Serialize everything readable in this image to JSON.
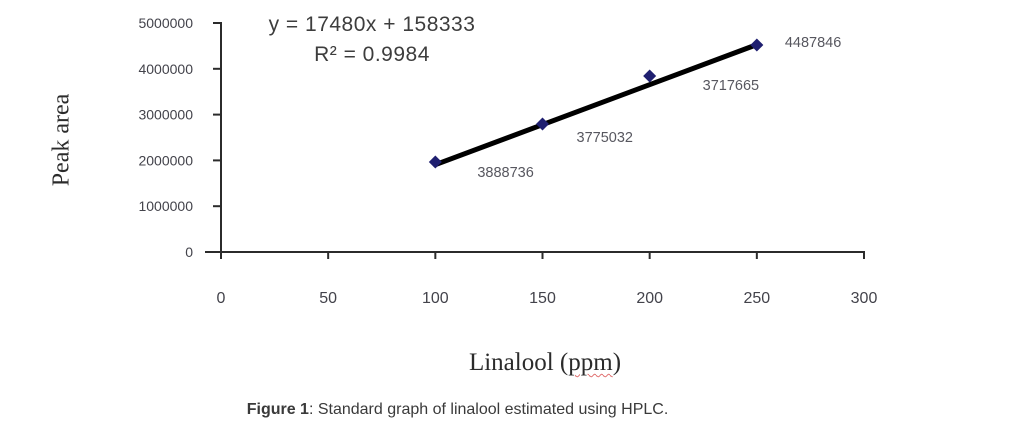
{
  "chart_data": {
    "type": "scatter",
    "title": "",
    "equation": "y = 17480x + 158333",
    "r_squared": "R² = 0.9984",
    "xlabel": "Linalool (ppm)",
    "xlabel_parts": {
      "pre": "Linalool (",
      "word": "ppm",
      "post": ")"
    },
    "ylabel": "Peak area",
    "xlim": [
      0,
      300
    ],
    "ylim": [
      0,
      5000000
    ],
    "x_ticks": [
      0,
      50,
      100,
      150,
      200,
      250,
      300
    ],
    "y_ticks": [
      0,
      1000000,
      2000000,
      3000000,
      4000000,
      5000000
    ],
    "grid": false,
    "legend": "none",
    "points": [
      {
        "x": 100,
        "y": 1965000,
        "label": "3888736"
      },
      {
        "x": 150,
        "y": 2795000,
        "label": "3775032"
      },
      {
        "x": 200,
        "y": 3843000,
        "label": "3717665"
      },
      {
        "x": 250,
        "y": 4520000,
        "label": "4487846"
      }
    ],
    "trendline": {
      "slope": 17480,
      "intercept": 158333,
      "x_start": 100,
      "x_end": 250
    },
    "colors": {
      "marker": "#1f1f70",
      "trendline": "#000000",
      "axis": "#2b2b2b",
      "tick_label": "#43434b",
      "point_label": "#57575f",
      "equation_text": "#3d3d3d",
      "misspell_underline": "#e07070"
    }
  },
  "caption": {
    "label": "Figure 1",
    "text": ": Standard graph of linalool estimated using HPLC."
  }
}
